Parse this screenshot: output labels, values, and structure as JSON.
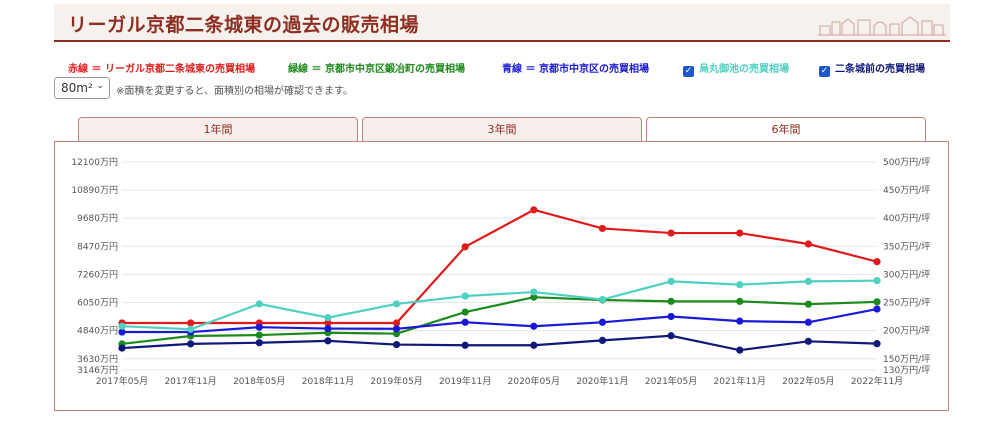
{
  "header": {
    "title": "リーガル京都二条城東の過去の販売相場"
  },
  "legend": {
    "red": "赤線 ＝ リーガル京都二条城東の売買相場",
    "green": "緑線 ＝ 京都市中京区鍛冶町の売買相場",
    "blue": "青線 ＝ 京都市中京区の売買相場",
    "cb1": "烏丸御池の売買相場",
    "cb2": "二条城前の売買相場",
    "colors": {
      "red": "#e01b1b",
      "green": "#1d8a1d",
      "blue": "#1a1ad6",
      "teal": "#4fd0c0",
      "navy": "#10187a"
    }
  },
  "area_select": {
    "value": "80m²",
    "note": "※面積を変更すると、面積別の相場が確認できます。"
  },
  "tabs": [
    {
      "label": "1年間",
      "active": false
    },
    {
      "label": "3年間",
      "active": false
    },
    {
      "label": "6年間",
      "active": true
    }
  ],
  "chart_data": {
    "type": "line",
    "categories": [
      "2017年05月",
      "2017年11月",
      "2018年05月",
      "2018年11月",
      "2019年05月",
      "2019年11月",
      "2020年05月",
      "2020年11月",
      "2021年05月",
      "2021年11月",
      "2022年05月",
      "2022年11月"
    ],
    "y_left_ticks": [
      "12100万円",
      "10890万円",
      "9680万円",
      "8470万円",
      "7260万円",
      "6050万円",
      "4840万円",
      "3630万円",
      "3146万円"
    ],
    "y_right_ticks": [
      "500万円/坪",
      "450万円/坪",
      "400万円/坪",
      "350万円/坪",
      "300万円/坪",
      "250万円/坪",
      "200万円/坪",
      "150万円/坪",
      "130万円/坪"
    ],
    "ylim_left": [
      3146,
      12100
    ],
    "ylim_right": [
      130,
      500
    ],
    "series": [
      {
        "name": "赤線 ＝ リーガル京都二条城東の売買相場",
        "color": "#e01b1b",
        "values": [
          5170,
          5170,
          5170,
          5170,
          5170,
          8450,
          10040,
          9240,
          9040,
          9040,
          8570,
          7810
        ]
      },
      {
        "name": "緑線 ＝ 京都市中京区鍛冶町の売買相場",
        "color": "#1d8a1d",
        "values": [
          4270,
          4610,
          4650,
          4750,
          4710,
          5640,
          6280,
          6160,
          6100,
          6100,
          5980,
          6080
        ]
      },
      {
        "name": "青線 ＝ 京都市中京区の売買相場",
        "color": "#1a1ad6",
        "values": [
          4780,
          4780,
          4990,
          4930,
          4920,
          5200,
          5030,
          5200,
          5450,
          5250,
          5200,
          5770
        ]
      },
      {
        "name": "烏丸御池の売買相場",
        "color": "#4fd0c0",
        "values": [
          5030,
          4900,
          5990,
          5400,
          5990,
          6330,
          6500,
          6180,
          6960,
          6820,
          6960,
          6990
        ]
      },
      {
        "name": "二条城前の売買相場",
        "color": "#10187a",
        "values": [
          4090,
          4270,
          4320,
          4400,
          4240,
          4210,
          4210,
          4420,
          4620,
          4000,
          4380,
          4280
        ]
      }
    ],
    "grid": true,
    "legend": "top"
  }
}
